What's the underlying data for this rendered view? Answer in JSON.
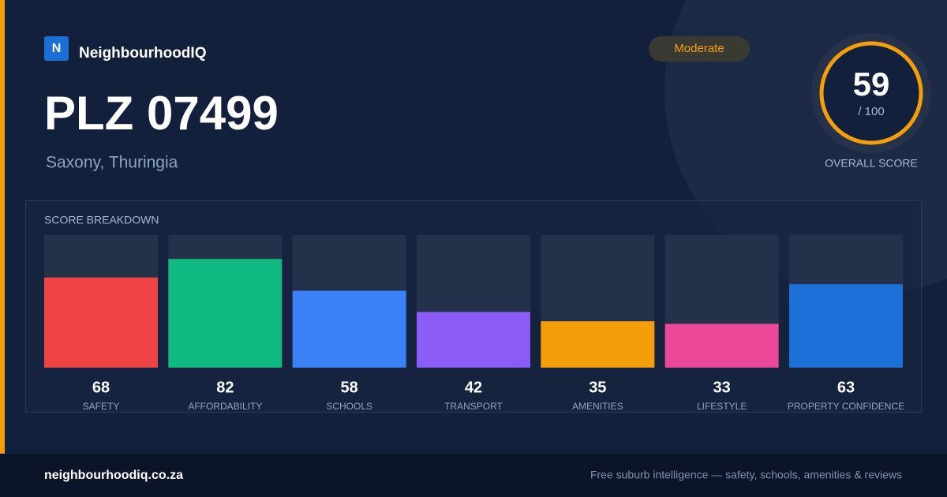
{
  "brand": {
    "logo_letter": "N",
    "name": "NeighbourhoodIQ"
  },
  "title": "PLZ 07499",
  "subtitle": "Saxony, Thuringia",
  "badge": "Moderate",
  "overall": {
    "score": 59,
    "max_label": "/ 100",
    "label": "OVERALL SCORE"
  },
  "footer": {
    "site": "neighbourhoodiq.co.za",
    "tagline": "Free suburb intelligence — safety, schools, amenities & reviews"
  },
  "chart_data": {
    "type": "bar",
    "title": "SCORE BREAKDOWN",
    "categories": [
      "SAFETY",
      "AFFORDABILITY",
      "SCHOOLS",
      "TRANSPORT",
      "AMENITIES",
      "LIFESTYLE",
      "PROPERTY CONFIDENCE"
    ],
    "values": [
      68,
      82,
      58,
      42,
      35,
      33,
      63
    ],
    "colors": [
      "#ef4444",
      "#10b981",
      "#3b82f6",
      "#8b5cf6",
      "#f59e0b",
      "#ec4899",
      "#1d6fd8"
    ],
    "ylim": [
      0,
      100
    ]
  }
}
